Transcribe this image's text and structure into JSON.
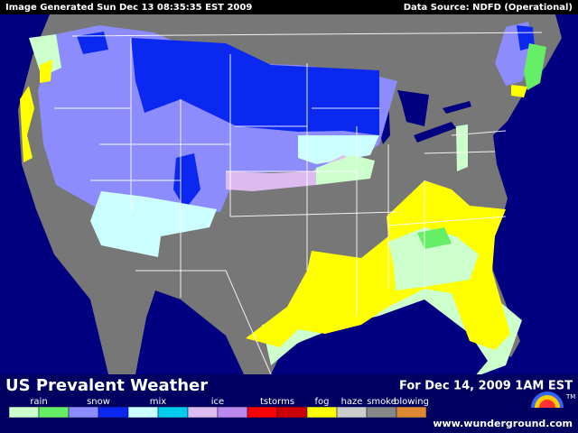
{
  "header": {
    "generated": "Image Generated Sun Dec 13 08:35:35 EST 2009",
    "source": "Data Source: NDFD (Operational)"
  },
  "title": "US Prevalent Weather",
  "valid_time": "For Dec 14, 2009  1AM EST",
  "legend": {
    "items": [
      {
        "label": "rain",
        "colors": [
          "#ccffcc",
          "#66ee66"
        ]
      },
      {
        "label": "snow",
        "colors": [
          "#8c8cff",
          "#0a28f0"
        ]
      },
      {
        "label": "mix",
        "colors": [
          "#ccffff",
          "#00ccee"
        ]
      },
      {
        "label": "ice",
        "colors": [
          "#ddbbee",
          "#bb88ee"
        ]
      },
      {
        "label": "tstorms",
        "colors": [
          "#ff0000",
          "#cc0000"
        ]
      },
      {
        "label": "fog",
        "colors": [
          "#ffff00"
        ]
      },
      {
        "label": "haze",
        "colors": [
          "#cccccc"
        ]
      },
      {
        "label": "smoke",
        "colors": [
          "#888888"
        ]
      },
      {
        "label": "blowing",
        "colors": [
          "#dd8833"
        ]
      }
    ]
  },
  "footer": {
    "url": "www.wunderground.com",
    "tm": "TM"
  }
}
